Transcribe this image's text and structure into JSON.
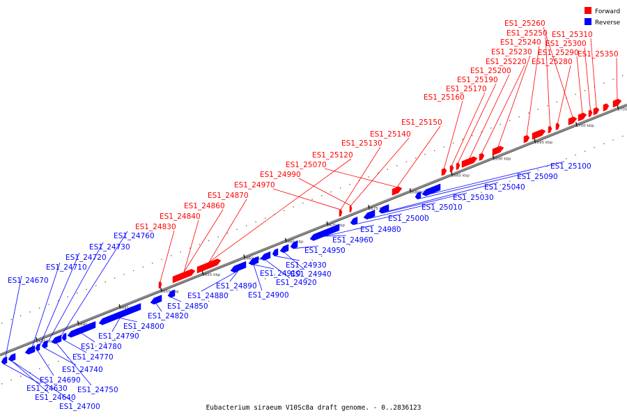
{
  "legend": {
    "forward": {
      "label": "Forward",
      "color": "#ff0000"
    },
    "reverse": {
      "label": "Reverse",
      "color": "#0000ff"
    }
  },
  "caption": "Eubacterium siraeum V10Sc8a draft genome. - 0..2836123",
  "ticks": [
    "2635 kbp",
    "2640 kbp",
    "2645 kbp",
    "2650 kbp",
    "2655 kbp",
    "2660 kbp",
    "2665 kbp",
    "2670 kbp",
    "2675 kbp",
    "2680 kbp",
    "2685 kbp",
    "2690 kbp",
    "2695 kbp",
    "2700 kbp",
    "2705 kbp"
  ],
  "genes": [
    {
      "name": "ES1_25260",
      "strand": "forward"
    },
    {
      "name": "ES1_25250",
      "strand": "forward"
    },
    {
      "name": "ES1_25240",
      "strand": "forward"
    },
    {
      "name": "ES1_25230",
      "strand": "forward"
    },
    {
      "name": "ES1_25220",
      "strand": "forward"
    },
    {
      "name": "ES1_25200",
      "strand": "forward"
    },
    {
      "name": "ES1_25190",
      "strand": "forward"
    },
    {
      "name": "ES1_25170",
      "strand": "forward"
    },
    {
      "name": "ES1_25160",
      "strand": "forward"
    },
    {
      "name": "ES1_25310",
      "strand": "forward"
    },
    {
      "name": "ES1_25300",
      "strand": "forward"
    },
    {
      "name": "ES1_25290",
      "strand": "forward"
    },
    {
      "name": "ES1_25280",
      "strand": "forward"
    },
    {
      "name": "ES1_25350",
      "strand": "forward"
    },
    {
      "name": "ES1_25150",
      "strand": "forward"
    },
    {
      "name": "ES1_25140",
      "strand": "forward"
    },
    {
      "name": "ES1_25130",
      "strand": "forward"
    },
    {
      "name": "ES1_25120",
      "strand": "forward"
    },
    {
      "name": "ES1_25070",
      "strand": "forward"
    },
    {
      "name": "ES1_24990",
      "strand": "forward"
    },
    {
      "name": "ES1_24970",
      "strand": "forward"
    },
    {
      "name": "ES1_24870",
      "strand": "forward"
    },
    {
      "name": "ES1_24860",
      "strand": "forward"
    },
    {
      "name": "ES1_24840",
      "strand": "forward"
    },
    {
      "name": "ES1_24830",
      "strand": "forward"
    },
    {
      "name": "ES1_25100",
      "strand": "reverse"
    },
    {
      "name": "ES1_25090",
      "strand": "reverse"
    },
    {
      "name": "ES1_25040",
      "strand": "reverse"
    },
    {
      "name": "ES1_25030",
      "strand": "reverse"
    },
    {
      "name": "ES1_25010",
      "strand": "reverse"
    },
    {
      "name": "ES1_25000",
      "strand": "reverse"
    },
    {
      "name": "ES1_24980",
      "strand": "reverse"
    },
    {
      "name": "ES1_24960",
      "strand": "reverse"
    },
    {
      "name": "ES1_24950",
      "strand": "reverse"
    },
    {
      "name": "ES1_24940",
      "strand": "reverse"
    },
    {
      "name": "ES1_24930",
      "strand": "reverse"
    },
    {
      "name": "ES1_24920",
      "strand": "reverse"
    },
    {
      "name": "ES1_24910",
      "strand": "reverse"
    },
    {
      "name": "ES1_24900",
      "strand": "reverse"
    },
    {
      "name": "ES1_24890",
      "strand": "reverse"
    },
    {
      "name": "ES1_24880",
      "strand": "reverse"
    },
    {
      "name": "ES1_24850",
      "strand": "reverse"
    },
    {
      "name": "ES1_24820",
      "strand": "reverse"
    },
    {
      "name": "ES1_24800",
      "strand": "reverse"
    },
    {
      "name": "ES1_24790",
      "strand": "reverse"
    },
    {
      "name": "ES1_24780",
      "strand": "reverse"
    },
    {
      "name": "ES1_24770",
      "strand": "reverse"
    },
    {
      "name": "ES1_24760",
      "strand": "reverse"
    },
    {
      "name": "ES1_24750",
      "strand": "reverse"
    },
    {
      "name": "ES1_24740",
      "strand": "reverse"
    },
    {
      "name": "ES1_24730",
      "strand": "reverse"
    },
    {
      "name": "ES1_24720",
      "strand": "reverse"
    },
    {
      "name": "ES1_24710",
      "strand": "reverse"
    },
    {
      "name": "ES1_24700",
      "strand": "reverse"
    },
    {
      "name": "ES1_24690",
      "strand": "reverse"
    },
    {
      "name": "ES1_24670",
      "strand": "reverse"
    },
    {
      "name": "ES1_24640",
      "strand": "reverse"
    },
    {
      "name": "ES1_24630",
      "strand": "reverse"
    }
  ]
}
